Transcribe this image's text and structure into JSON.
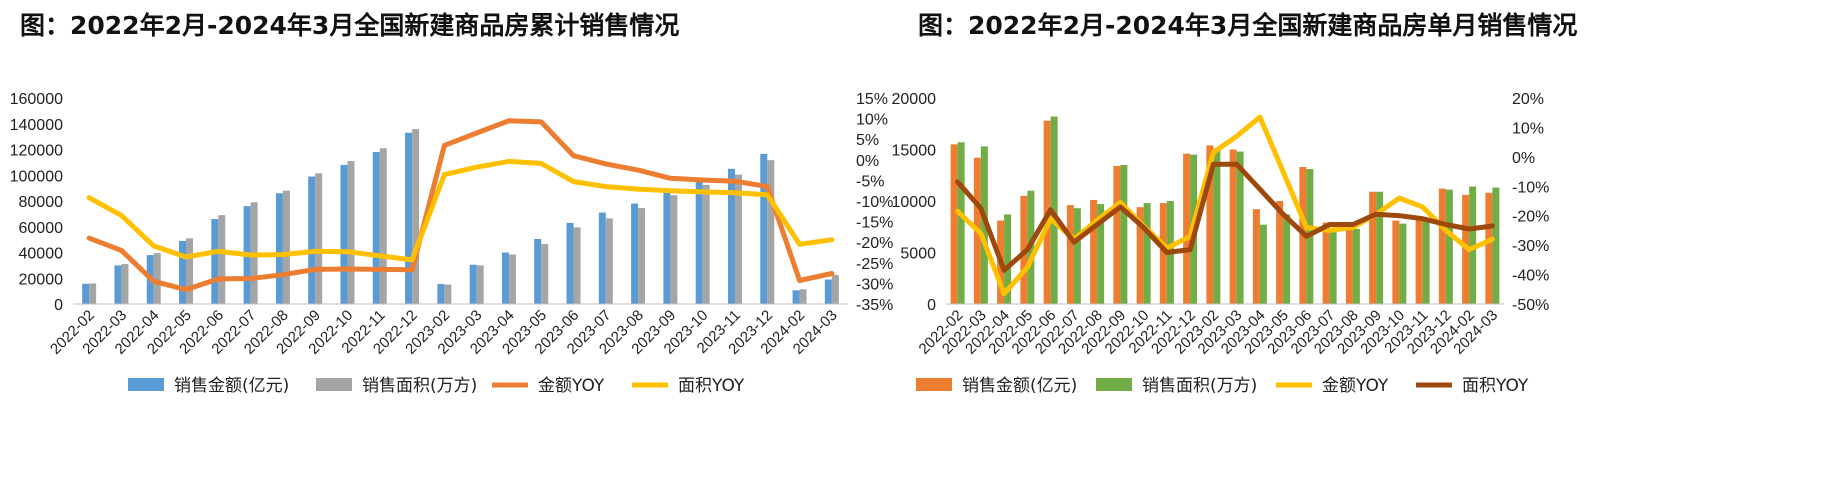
{
  "chart_data": [
    {
      "type": "bar",
      "title": "图：2022年2月-2024年3月全国新建商品房累计销售情况",
      "categories": [
        "2022-02",
        "2022-03",
        "2022-04",
        "2022-05",
        "2022-06",
        "2022-07",
        "2022-08",
        "2022-09",
        "2022-10",
        "2022-11",
        "2022-12",
        "2023-02",
        "2023-03",
        "2023-04",
        "2023-05",
        "2023-06",
        "2023-07",
        "2023-08",
        "2023-09",
        "2023-10",
        "2023-11",
        "2023-12",
        "2024-02",
        "2024-03"
      ],
      "y_left": {
        "min": 0,
        "max": 160000,
        "step": 20000,
        "ticks": [
          "0",
          "20000",
          "40000",
          "60000",
          "80000",
          "100000",
          "120000",
          "140000",
          "160000"
        ]
      },
      "y_right": {
        "min": -35,
        "max": 15,
        "step": 5,
        "ticks": [
          "-35%",
          "-30%",
          "-25%",
          "-20%",
          "-15%",
          "-10%",
          "-5%",
          "0%",
          "5%",
          "10%",
          "15%"
        ]
      },
      "series": [
        {
          "name": "销售金额(亿元)",
          "kind": "bar",
          "axis": "left",
          "color": "#5B9BD5",
          "values": [
            15700,
            30000,
            38000,
            49000,
            66000,
            76000,
            86000,
            99000,
            108000,
            118000,
            133000,
            15500,
            30500,
            40000,
            50500,
            63000,
            71000,
            78000,
            89000,
            97000,
            105000,
            116600,
            10600,
            19000
          ]
        },
        {
          "name": "销售面积(万方)",
          "kind": "bar",
          "axis": "left",
          "color": "#A5A5A5",
          "values": [
            16000,
            31000,
            39500,
            51000,
            69000,
            79000,
            88000,
            101500,
            111000,
            121000,
            135800,
            15100,
            30000,
            38500,
            46500,
            59500,
            66500,
            74500,
            84500,
            92500,
            100500,
            111700,
            11400,
            22600
          ]
        },
        {
          "name": "金额YOY",
          "kind": "line",
          "axis": "right",
          "color": "#ED7D31",
          "values": [
            -19,
            -22,
            -29.5,
            -31.5,
            -28.9,
            -28.8,
            -27.9,
            -26.6,
            -26.5,
            -26.6,
            -26.7,
            3.5,
            6.5,
            9.5,
            9.2,
            1.0,
            -1.0,
            -2.5,
            -4.5,
            -4.9,
            -5.2,
            -6.5,
            -29.3,
            -27.6
          ]
        },
        {
          "name": "面积YOY",
          "kind": "line",
          "axis": "right",
          "color": "#FFC000",
          "values": [
            -9.2,
            -13.5,
            -20.9,
            -23.6,
            -22.2,
            -23.1,
            -23.0,
            -22.2,
            -22.3,
            -23.3,
            -24.3,
            -3.6,
            -1.8,
            -0.4,
            -0.9,
            -5.3,
            -6.5,
            -7.1,
            -7.5,
            -7.8,
            -8.0,
            -8.5,
            -20.5,
            -19.4
          ]
        }
      ],
      "legend": {
        "position": "bottom"
      }
    },
    {
      "type": "bar",
      "title": "图：2022年2月-2024年3月全国新建商品房单月销售情况",
      "categories": [
        "2022-02",
        "2022-03",
        "2022-04",
        "2022-05",
        "2022-06",
        "2022-07",
        "2022-08",
        "2022-09",
        "2022-10",
        "2022-11",
        "2022-12",
        "2023-02",
        "2023-03",
        "2023-04",
        "2023-05",
        "2023-06",
        "2023-07",
        "2023-08",
        "2023-09",
        "2023-10",
        "2023-11",
        "2023-12",
        "2024-02",
        "2024-03"
      ],
      "y_left": {
        "min": 0,
        "max": 20000,
        "step": 5000,
        "ticks": [
          "0",
          "5000",
          "10000",
          "15000",
          "20000"
        ]
      },
      "y_right": {
        "min": -50,
        "max": 20,
        "step": 10,
        "ticks": [
          "-50%",
          "-40%",
          "-30%",
          "-20%",
          "-10%",
          "0%",
          "10%",
          "20%"
        ]
      },
      "series": [
        {
          "name": "销售金额(亿元)",
          "kind": "bar",
          "axis": "left",
          "color": "#ED7D31",
          "values": [
            15500,
            14200,
            8100,
            10500,
            17800,
            9600,
            10100,
            13400,
            9400,
            9800,
            14600,
            15400,
            15000,
            9200,
            10000,
            13300,
            7900,
            7500,
            10900,
            8100,
            8300,
            11200,
            10600,
            10800
          ]
        },
        {
          "name": "销售面积(万方)",
          "kind": "bar",
          "axis": "left",
          "color": "#70AD47",
          "values": [
            15700,
            15300,
            8700,
            11000,
            18200,
            9300,
            9700,
            13500,
            9800,
            10000,
            14500,
            15100,
            14800,
            7700,
            8700,
            13100,
            7000,
            7300,
            10900,
            7800,
            8100,
            11100,
            11400,
            11300
          ]
        },
        {
          "name": "金额YOY",
          "kind": "line",
          "axis": "right",
          "color": "#FFC000",
          "values": [
            -18.5,
            -26,
            -46.5,
            -37.5,
            -21,
            -28,
            -21.5,
            -15.5,
            -23.5,
            -31,
            -27,
            1.5,
            7,
            13.5,
            -5,
            -24,
            -25,
            -24,
            -19.5,
            -14,
            -17,
            -25,
            -31.5,
            -28
          ]
        },
        {
          "name": "面积YOY",
          "kind": "line",
          "axis": "right",
          "color": "#9E480E",
          "values": [
            -8.5,
            -17.5,
            -38.5,
            -31.5,
            -18,
            -29,
            -23,
            -17,
            -24,
            -32.5,
            -31.5,
            -2.5,
            -2.5,
            -11,
            -19.5,
            -27,
            -23,
            -23,
            -19.5,
            -20,
            -21,
            -23,
            -24.5,
            -23.5
          ]
        }
      ],
      "legend": {
        "position": "bottom"
      }
    }
  ]
}
